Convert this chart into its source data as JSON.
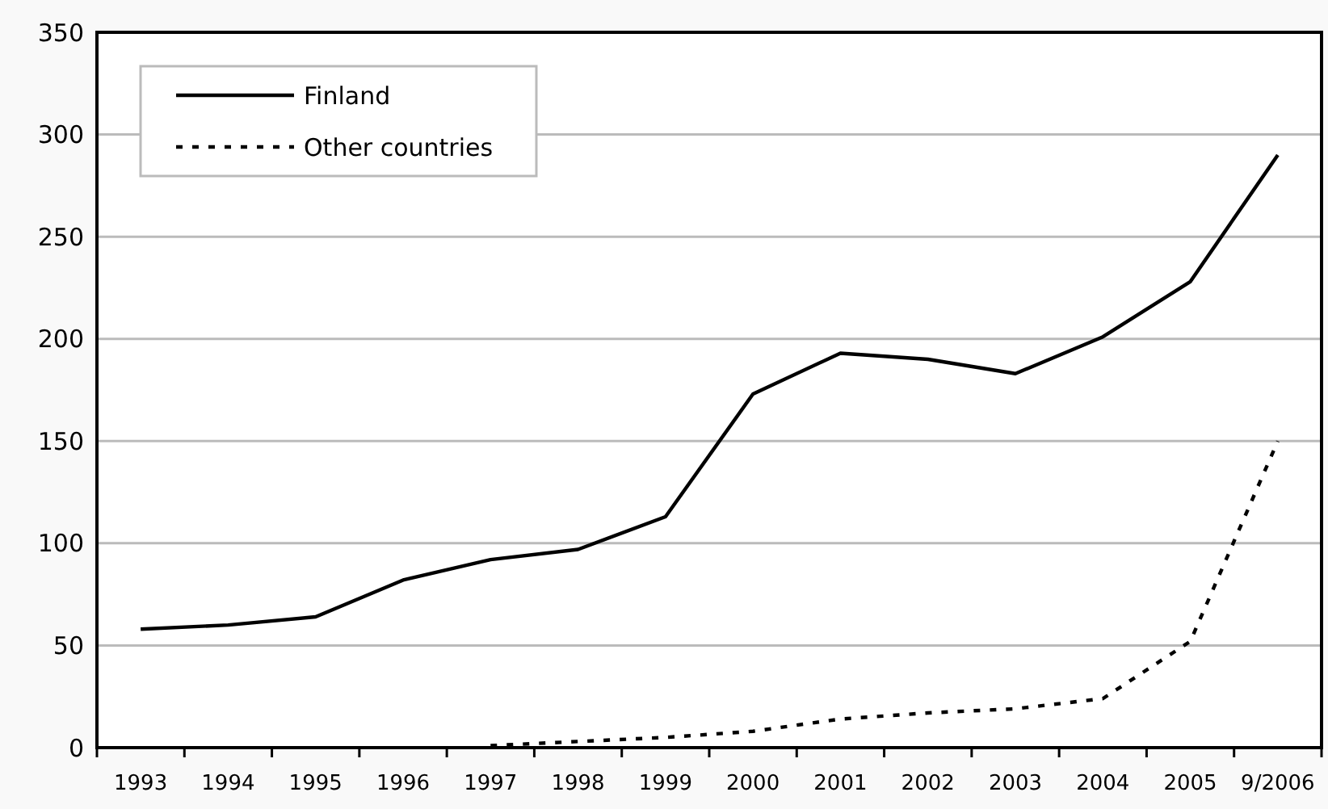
{
  "chart_data": {
    "type": "line",
    "categories": [
      "1993",
      "1994",
      "1995",
      "1996",
      "1997",
      "1998",
      "1999",
      "2000",
      "2001",
      "2002",
      "2003",
      "2004",
      "2005",
      "9/2006"
    ],
    "series": [
      {
        "name": "Finland",
        "color": "#000000",
        "line_style": "solid",
        "values": [
          58,
          60,
          64,
          82,
          92,
          97,
          113,
          173,
          193,
          190,
          183,
          201,
          228,
          290
        ]
      },
      {
        "name": "Other countries",
        "color": "#000000",
        "line_style": "dotted",
        "values": [
          null,
          null,
          null,
          null,
          1,
          3,
          5,
          8,
          14,
          17,
          19,
          24,
          52,
          150
        ]
      }
    ],
    "ylim": [
      0,
      350
    ],
    "yticks": [
      0,
      50,
      100,
      150,
      200,
      250,
      300,
      350
    ],
    "grid": "y",
    "legend": "top left",
    "marker": "none"
  }
}
